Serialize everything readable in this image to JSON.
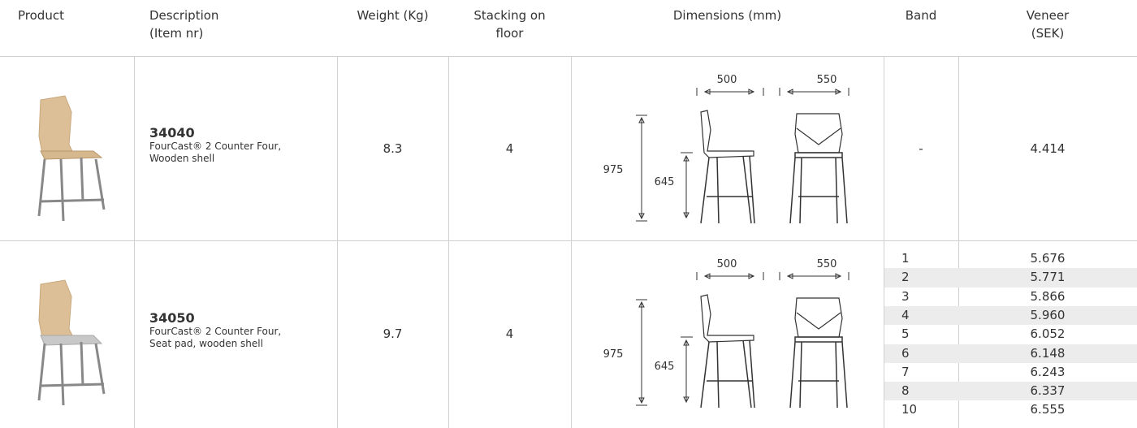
{
  "header": {
    "product": "Product",
    "description": [
      "Description",
      "(Item nr)"
    ],
    "weight": "Weight (Kg)",
    "stacking": [
      "Stacking on",
      "floor"
    ],
    "dimensions": "Dimensions (mm)",
    "band": "Band",
    "veneer": [
      "Veneer",
      "(SEK)"
    ]
  },
  "rows": [
    {
      "item": "34040",
      "description": [
        "FourCast® 2 Counter Four,",
        "Wooden shell"
      ],
      "weight": "8.3",
      "stacking": "4",
      "dimensions": {
        "width": "500",
        "depth": "550",
        "height": "975",
        "seat_height": "645"
      },
      "prices": [
        {
          "band": "-",
          "veneer": "4.414"
        }
      ]
    },
    {
      "item": "34050",
      "description": [
        "FourCast® 2 Counter Four,",
        "Seat pad, wooden shell"
      ],
      "weight": "9.7",
      "stacking": "4",
      "dimensions": {
        "width": "500",
        "depth": "550",
        "height": "975",
        "seat_height": "645"
      },
      "prices": [
        {
          "band": "1",
          "veneer": "5.676"
        },
        {
          "band": "2",
          "veneer": "5.771"
        },
        {
          "band": "3",
          "veneer": "5.866"
        },
        {
          "band": "4",
          "veneer": "5.960"
        },
        {
          "band": "5",
          "veneer": "6.052"
        },
        {
          "band": "6",
          "veneer": "6.148"
        },
        {
          "band": "7",
          "veneer": "6.243"
        },
        {
          "band": "8",
          "veneer": "6.337"
        },
        {
          "band": "10",
          "veneer": "6.555"
        }
      ]
    }
  ]
}
